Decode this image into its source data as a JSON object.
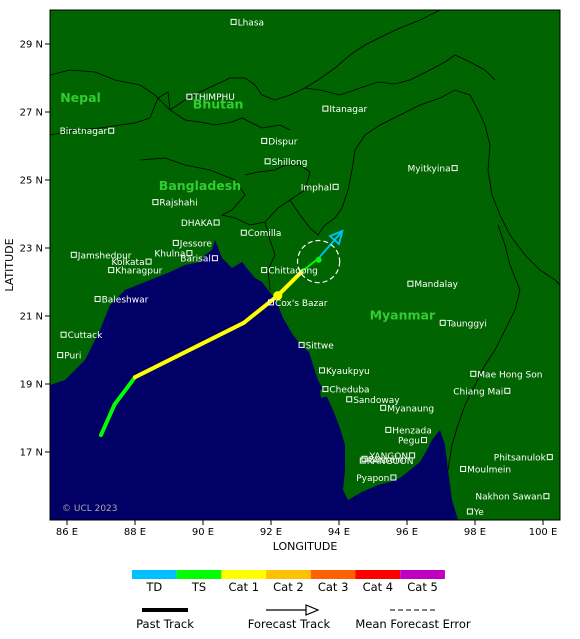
{
  "map": {
    "lon_range": [
      85.5,
      100.5
    ],
    "lat_range": [
      15.0,
      30.0
    ],
    "x_ticks": [
      {
        "v": 86,
        "label": "86 E"
      },
      {
        "v": 88,
        "label": "88 E"
      },
      {
        "v": 90,
        "label": "90 E"
      },
      {
        "v": 92,
        "label": "92 E"
      },
      {
        "v": 94,
        "label": "94 E"
      },
      {
        "v": 96,
        "label": "96 E"
      },
      {
        "v": 98,
        "label": "98 E"
      },
      {
        "v": 100,
        "label": "100 E"
      }
    ],
    "y_ticks": [
      {
        "v": 17,
        "label": "17 N"
      },
      {
        "v": 19,
        "label": "19 N"
      },
      {
        "v": 21,
        "label": "21 N"
      },
      {
        "v": 23,
        "label": "23 N"
      },
      {
        "v": 25,
        "label": "25 N"
      },
      {
        "v": 27,
        "label": "27 N"
      },
      {
        "v": 29,
        "label": "29 N"
      }
    ],
    "xlabel": "LONGITUDE",
    "ylabel": "LATITUDE",
    "copyright": "© UCL 2023",
    "colors": {
      "land": "#006400",
      "sea": "#000066",
      "border": "#000000",
      "city": "#ffffff",
      "country_label": "#33cc33"
    },
    "countries": [
      {
        "name": "Nepal",
        "lon": 85.8,
        "lat": 27.3
      },
      {
        "name": "Bhutan",
        "lon": 89.7,
        "lat": 27.1
      },
      {
        "name": "Bangladesh",
        "lon": 88.7,
        "lat": 24.7
      },
      {
        "name": "Myanmar",
        "lon": 94.9,
        "lat": 20.9
      }
    ],
    "cities": [
      {
        "name": "Lhasa",
        "lon": 90.9,
        "lat": 29.65,
        "side": "right"
      },
      {
        "name": "THIMPHU",
        "lon": 89.6,
        "lat": 27.45,
        "side": "right"
      },
      {
        "name": "Itanagar",
        "lon": 93.6,
        "lat": 27.1,
        "side": "right"
      },
      {
        "name": "Biratnagar",
        "lon": 87.3,
        "lat": 26.45,
        "side": "left"
      },
      {
        "name": "Dispur",
        "lon": 91.8,
        "lat": 26.15,
        "side": "right"
      },
      {
        "name": "Shillong",
        "lon": 91.9,
        "lat": 25.55,
        "side": "right"
      },
      {
        "name": "Myitkyina",
        "lon": 97.4,
        "lat": 25.35,
        "side": "left"
      },
      {
        "name": "Imphal",
        "lon": 93.9,
        "lat": 24.8,
        "side": "left"
      },
      {
        "name": "Rajshahi",
        "lon": 88.6,
        "lat": 24.35,
        "side": "right"
      },
      {
        "name": "DHAKA",
        "lon": 90.4,
        "lat": 23.75,
        "side": "left"
      },
      {
        "name": "Comilla",
        "lon": 91.2,
        "lat": 23.45,
        "side": "right"
      },
      {
        "name": "Jessore",
        "lon": 89.2,
        "lat": 23.15,
        "side": "right"
      },
      {
        "name": "Jamshedpur",
        "lon": 86.2,
        "lat": 22.8,
        "side": "right"
      },
      {
        "name": "Khulna",
        "lon": 89.6,
        "lat": 22.85,
        "side": "left"
      },
      {
        "name": "Kolkata",
        "lon": 88.4,
        "lat": 22.6,
        "side": "left"
      },
      {
        "name": "Barisal",
        "lon": 90.35,
        "lat": 22.7,
        "side": "left"
      },
      {
        "name": "Kharagpur",
        "lon": 87.3,
        "lat": 22.35,
        "side": "right"
      },
      {
        "name": "Chittagong",
        "lon": 91.8,
        "lat": 22.35,
        "side": "right"
      },
      {
        "name": "Mandalay",
        "lon": 96.1,
        "lat": 21.95,
        "side": "right"
      },
      {
        "name": "Baleshwar",
        "lon": 86.9,
        "lat": 21.5,
        "side": "right"
      },
      {
        "name": "Cox's Bazar",
        "lon": 92.0,
        "lat": 21.4,
        "side": "right"
      },
      {
        "name": "Taunggyi",
        "lon": 97.05,
        "lat": 20.8,
        "side": "right"
      },
      {
        "name": "Cuttack",
        "lon": 85.9,
        "lat": 20.45,
        "side": "right"
      },
      {
        "name": "Sittwe",
        "lon": 92.9,
        "lat": 20.15,
        "side": "right"
      },
      {
        "name": "Puri",
        "lon": 85.8,
        "lat": 19.85,
        "side": "right"
      },
      {
        "name": "Kyaukpyu",
        "lon": 93.5,
        "lat": 19.4,
        "side": "right"
      },
      {
        "name": "Mae Hong Son",
        "lon": 97.95,
        "lat": 19.3,
        "side": "right"
      },
      {
        "name": "Cheduba",
        "lon": 93.6,
        "lat": 18.85,
        "side": "right"
      },
      {
        "name": "Chiang Mai",
        "lon": 98.95,
        "lat": 18.8,
        "side": "left"
      },
      {
        "name": "Sandoway",
        "lon": 94.3,
        "lat": 18.55,
        "side": "right"
      },
      {
        "name": "Myanaung",
        "lon": 95.3,
        "lat": 18.3,
        "side": "right"
      },
      {
        "name": "Henzada",
        "lon": 95.45,
        "lat": 17.65,
        "side": "right"
      },
      {
        "name": "Pegu",
        "lon": 96.5,
        "lat": 17.35,
        "side": "left"
      },
      {
        "name": "Bassein",
        "lon": 94.75,
        "lat": 16.8,
        "side": "right"
      },
      {
        "name": "YANGON",
        "lon": 96.15,
        "lat": 16.9,
        "side": "left"
      },
      {
        "name": "RANGOON",
        "lon": 94.7,
        "lat": 16.75,
        "side": "right"
      },
      {
        "name": "Phitsanulok",
        "lon": 100.2,
        "lat": 16.85,
        "side": "left"
      },
      {
        "name": "Moulmein",
        "lon": 97.65,
        "lat": 16.5,
        "side": "right"
      },
      {
        "name": "Pyapon",
        "lon": 95.6,
        "lat": 16.25,
        "side": "left"
      },
      {
        "name": "Nakhon Sawan",
        "lon": 100.1,
        "lat": 15.7,
        "side": "left"
      },
      {
        "name": "Ye",
        "lon": 97.85,
        "lat": 15.25,
        "side": "right"
      }
    ],
    "past_track": [
      {
        "lon": 87.0,
        "lat": 17.5,
        "cat": "TS"
      },
      {
        "lon": 87.4,
        "lat": 18.4,
        "cat": "TS"
      },
      {
        "lon": 88.0,
        "lat": 19.2,
        "cat": "TS"
      },
      {
        "lon": 89.2,
        "lat": 19.8,
        "cat": "Cat 1"
      },
      {
        "lon": 91.2,
        "lat": 20.8,
        "cat": "Cat 1"
      },
      {
        "lon": 92.2,
        "lat": 21.6,
        "cat": "Cat 1"
      },
      {
        "lon": 92.9,
        "lat": 22.3,
        "cat": "Cat 1"
      }
    ],
    "current_position": {
      "lon": 92.2,
      "lat": 21.6
    },
    "forecast_track": [
      {
        "lon": 92.9,
        "lat": 22.3,
        "cat": "TS"
      },
      {
        "lon": 93.4,
        "lat": 22.7,
        "cat": "TS"
      },
      {
        "lon": 94.1,
        "lat": 23.5,
        "cat": "TD"
      }
    ],
    "forecast_points": [
      {
        "lon": 93.4,
        "lat": 22.65
      }
    ],
    "forecast_error_circle": {
      "lon": 93.4,
      "lat": 22.6,
      "radius_deg": 0.62
    }
  },
  "legend": {
    "categories": [
      {
        "label": "TD",
        "color": "#00c0ff"
      },
      {
        "label": "TS",
        "color": "#00ff00"
      },
      {
        "label": "Cat 1",
        "color": "#ffff00"
      },
      {
        "label": "Cat 2",
        "color": "#ffc000"
      },
      {
        "label": "Cat 3",
        "color": "#ff6000"
      },
      {
        "label": "Cat 4",
        "color": "#ff0000"
      },
      {
        "label": "Cat 5",
        "color": "#c000c0"
      }
    ],
    "past_track": "Past Track",
    "forecast_track": "Forecast Track",
    "mean_forecast_error": "Mean Forecast Error"
  }
}
